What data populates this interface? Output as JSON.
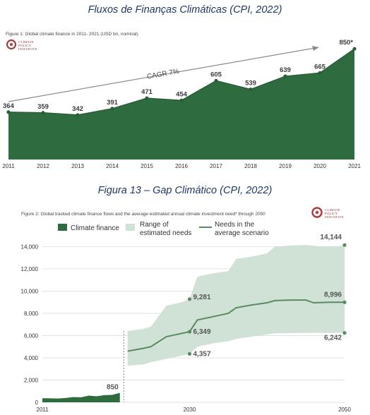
{
  "captions": {
    "top": "Fluxos de Finanças Climáticas (CPI, 2022)",
    "bottom": "Figura 13 – Gap Climático (CPI, 2022)"
  },
  "logo": {
    "line1": "CLIMATE",
    "line2": "POLICY",
    "line3": "INITIATIVE"
  },
  "colors": {
    "finance": "#2e6b3e",
    "finance_line": "#2a5e37",
    "range": "#cfe2d5",
    "needs_line": "#5b8a62",
    "logo": "#b03a3a"
  },
  "chart_data": [
    {
      "type": "area",
      "figure_label": "Figure 1: Global climate finance in 2011- 2021 (USD bn, nominal)",
      "x": [
        "2011",
        "2012",
        "2013",
        "2014",
        "2015",
        "2016",
        "2017",
        "2018",
        "2019",
        "2020",
        "2021"
      ],
      "values": [
        364,
        359,
        342,
        391,
        471,
        454,
        605,
        539,
        639,
        665,
        850
      ],
      "data_labels": [
        "364",
        "359",
        "342",
        "391",
        "471",
        "454",
        "605",
        "539",
        "639",
        "665",
        "850*"
      ],
      "ylim": [
        0,
        900
      ],
      "annotation": "CAGR 7%",
      "grid": false
    },
    {
      "type": "area",
      "figure_label": "Figure 2: Global tracked climate finance flows and the average estimated annual climate investment need* through 2050",
      "legend": [
        "Climate finance",
        "Range of estimated needs",
        "Needs in the average scenario"
      ],
      "legend_position": "top",
      "y_ticks": [
        "0",
        "2,000",
        "4,000",
        "6,000",
        "8,000",
        "10,000",
        "12,000",
        "14,000"
      ],
      "x_ticks": [
        "2011",
        "2030",
        "2050"
      ],
      "ylim": [
        0,
        14600
      ],
      "xlim": [
        2011,
        2050
      ],
      "grid": true,
      "series": [
        {
          "name": "Climate finance",
          "x": [
            2011,
            2012,
            2013,
            2014,
            2015,
            2016,
            2017,
            2018,
            2019,
            2020,
            2021
          ],
          "values": [
            364,
            359,
            342,
            391,
            471,
            454,
            605,
            539,
            639,
            665,
            850
          ]
        },
        {
          "name": "Range of estimated needs",
          "x": [
            2022,
            2024,
            2025,
            2027,
            2029,
            2030,
            2031,
            2033,
            2035,
            2036,
            2038,
            2040,
            2041,
            2043,
            2045,
            2047,
            2049,
            2050
          ],
          "upper": [
            6400,
            6600,
            6800,
            8700,
            9000,
            9281,
            11300,
            11600,
            11800,
            12900,
            13100,
            13400,
            14000,
            14100,
            14144,
            14000,
            14000,
            14144
          ],
          "lower": [
            3300,
            3400,
            3600,
            3900,
            4200,
            4357,
            5000,
            5300,
            5500,
            5700,
            5900,
            6100,
            6200,
            6220,
            6242,
            6242,
            6242,
            6242
          ]
        },
        {
          "name": "Needs in the average scenario",
          "x": [
            2022,
            2024,
            2025,
            2027,
            2029,
            2030,
            2031,
            2033,
            2035,
            2036,
            2038,
            2040,
            2041,
            2043,
            2045,
            2046,
            2048,
            2050
          ],
          "values": [
            4600,
            4850,
            5000,
            5900,
            6200,
            6349,
            7400,
            7700,
            8000,
            8500,
            8750,
            8950,
            9150,
            9200,
            9200,
            8950,
            9000,
            8996
          ]
        }
      ],
      "annotations": [
        {
          "label": "850",
          "x": 2021,
          "y": 850
        },
        {
          "label": "9,281",
          "x": 2030,
          "y": 9281
        },
        {
          "label": "6,349",
          "x": 2030,
          "y": 6349
        },
        {
          "label": "4,357",
          "x": 2030,
          "y": 4357
        },
        {
          "label": "14,144",
          "x": 2050,
          "y": 14144
        },
        {
          "label": "8,996",
          "x": 2050,
          "y": 8996
        },
        {
          "label": "6,242",
          "x": 2050,
          "y": 6242
        }
      ]
    }
  ]
}
